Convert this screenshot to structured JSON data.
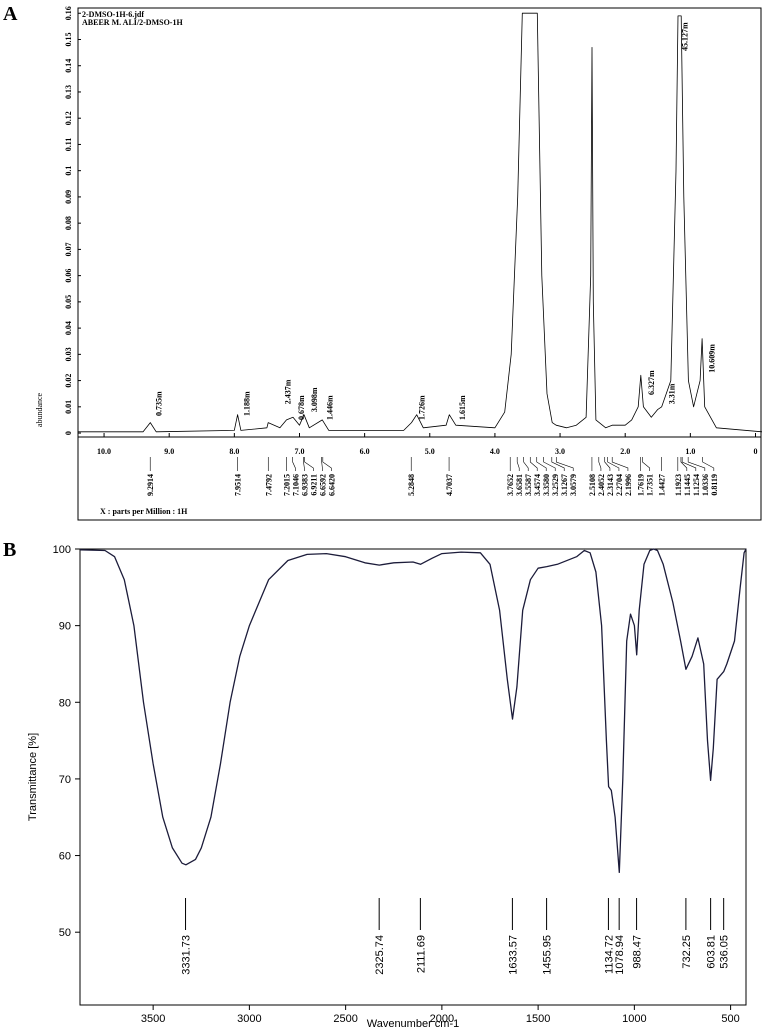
{
  "chart_data": [
    {
      "type": "line",
      "panel_label": "A",
      "title": "2-DMSO-1H-6.jdf",
      "subtitle": "ABEER M. ALI/2-DMSO-1H",
      "y_label": "abundance",
      "x_label": "X : parts per Million : 1H",
      "color": "#000000",
      "xlim": [
        10.4,
        -0.1
      ],
      "ylim": [
        -0.0015,
        0.162
      ],
      "xticks": [
        {
          "value": 10,
          "label": "10.0"
        },
        {
          "value": 9,
          "label": "9.0"
        },
        {
          "value": 8,
          "label": "8.0"
        },
        {
          "value": 7,
          "label": "7.0"
        },
        {
          "value": 6,
          "label": "6.0"
        },
        {
          "value": 5,
          "label": "5.0"
        },
        {
          "value": 4,
          "label": "4.0"
        },
        {
          "value": 3,
          "label": "3.0"
        },
        {
          "value": 2,
          "label": "2.0"
        },
        {
          "value": 1,
          "label": "1.0"
        },
        0
      ],
      "yticks": [
        0,
        0.01,
        0.02,
        0.03,
        0.04,
        0.05,
        0.06,
        0.07,
        0.08,
        0.09,
        0.1,
        0.11,
        0.12,
        0.13,
        0.14,
        0.15,
        0.16
      ],
      "x": [
        10.4,
        9.4,
        9.29,
        9.2,
        8.0,
        7.95,
        7.9,
        7.5,
        7.48,
        7.3,
        7.2,
        7.1,
        7.0,
        6.93,
        6.85,
        6.65,
        6.55,
        5.4,
        5.28,
        5.2,
        5.1,
        4.75,
        4.7,
        4.6,
        4.0,
        3.85,
        3.75,
        3.65,
        3.58,
        3.5,
        3.42,
        3.35,
        3.28,
        3.2,
        3.12,
        3.06,
        2.9,
        2.75,
        2.6,
        2.53,
        2.51,
        2.49,
        2.45,
        2.3,
        2.2,
        2.0,
        1.9,
        1.8,
        1.76,
        1.72,
        1.6,
        1.5,
        1.44,
        1.3,
        1.22,
        1.19,
        1.14,
        1.1,
        1.03,
        0.95,
        0.85,
        0.82,
        0.78,
        0.6,
        -0.1
      ],
      "values": [
        0.0005,
        0.0005,
        0.004,
        0.0005,
        0.001,
        0.007,
        0.001,
        0.002,
        0.004,
        0.002,
        0.005,
        0.006,
        0.003,
        0.007,
        0.002,
        0.005,
        0.001,
        0.001,
        0.004,
        0.007,
        0.002,
        0.003,
        0.007,
        0.003,
        0.002,
        0.008,
        0.03,
        0.09,
        0.16,
        0.16,
        0.16,
        0.16,
        0.06,
        0.015,
        0.004,
        0.003,
        0.002,
        0.003,
        0.006,
        0.06,
        0.147,
        0.05,
        0.005,
        0.002,
        0.003,
        0.003,
        0.005,
        0.01,
        0.022,
        0.01,
        0.006,
        0.009,
        0.01,
        0.02,
        0.1,
        0.159,
        0.159,
        0.09,
        0.02,
        0.01,
        0.02,
        0.036,
        0.01,
        0.002,
        0.0005
      ],
      "annotations": [
        {
          "text": "0.735m",
          "x": 9.12,
          "y": 0.0065
        },
        {
          "text": "1.188m",
          "x": 7.77,
          "y": 0.0065
        },
        {
          "text": "2.437m",
          "x": 7.14,
          "y": 0.011
        },
        {
          "text": "0.678m",
          "x": 6.93,
          "y": 0.005
        },
        {
          "text": "3.098m",
          "x": 6.73,
          "y": 0.008
        },
        {
          "text": "1.446m",
          "x": 6.49,
          "y": 0.005
        },
        {
          "text": "1.726m",
          "x": 5.08,
          "y": 0.005
        },
        {
          "text": "1.615m",
          "x": 4.46,
          "y": 0.005
        },
        {
          "text": "6.327m",
          "x": 1.56,
          "y": 0.0145
        },
        {
          "text": "3.31m",
          "x": 1.24,
          "y": 0.011
        },
        {
          "text": "45.127m",
          "x": 1.04,
          "y": 0.1456
        },
        {
          "text": "10.609m",
          "x": 0.63,
          "y": 0.023
        }
      ],
      "peaks": [
        9.2914,
        7.9514,
        7.4792,
        7.2015,
        7.1046,
        6.9383,
        6.9211,
        6.6592,
        {
          "value": 6.642,
          "label": "6.6420"
        },
        5.2848,
        4.7037,
        3.7652,
        3.6581,
        3.5587,
        3.4574,
        {
          "value": 3.358,
          "label": "3.3580"
        },
        3.2529,
        3.1267,
        3.0579,
        2.5108,
        2.4052,
        2.3143,
        2.2704,
        2.1996,
        1.7619,
        1.7351,
        1.4427,
        1.1923,
        1.1445,
        1.1254,
        1.0336,
        0.8119
      ]
    },
    {
      "type": "line",
      "panel_label": "B",
      "y_label": "Transmittance [%]",
      "x_label": "Wavenumber cm-1",
      "color": "#1c1c3a",
      "xlim": [
        3880,
        420
      ],
      "ylim": [
        40.5,
        100
      ],
      "xticks": [
        3500,
        3000,
        2500,
        2000,
        1500,
        1000,
        500
      ],
      "yticks": [
        50,
        60,
        70,
        80,
        90,
        100
      ],
      "x": [
        3880,
        3750,
        3700,
        3650,
        3600,
        3550,
        3500,
        3450,
        3400,
        3350,
        3330,
        3280,
        3250,
        3200,
        3150,
        3100,
        3050,
        3000,
        2950,
        2900,
        2800,
        2700,
        2600,
        2500,
        2400,
        2325,
        2250,
        2150,
        2111,
        2050,
        2000,
        1900,
        1800,
        1750,
        1700,
        1660,
        1633,
        1610,
        1580,
        1540,
        1500,
        1455,
        1400,
        1300,
        1260,
        1230,
        1200,
        1170,
        1145,
        1134,
        1120,
        1100,
        1078,
        1060,
        1040,
        1020,
        1000,
        988,
        975,
        950,
        920,
        900,
        880,
        850,
        800,
        760,
        732,
        700,
        670,
        640,
        620,
        604,
        590,
        570,
        536,
        520,
        480,
        450,
        430,
        420
      ],
      "values": [
        99.9,
        99.8,
        99,
        96,
        90,
        80,
        72,
        65,
        61,
        59,
        58.8,
        59.5,
        61,
        65,
        72,
        80,
        86,
        90,
        93,
        96,
        98.5,
        99.3,
        99.4,
        99,
        98.2,
        97.9,
        98.2,
        98.3,
        98,
        98.8,
        99.4,
        99.6,
        99.5,
        98,
        92,
        83,
        77.8,
        82,
        92,
        96,
        97.5,
        97.7,
        98,
        99,
        99.8,
        99.5,
        97,
        90,
        75,
        69,
        68.5,
        65,
        57.8,
        70,
        88,
        91.5,
        90,
        86.2,
        92,
        98,
        99.8,
        100,
        99.8,
        98,
        93,
        88,
        84.3,
        86,
        88.4,
        85,
        75,
        69.8,
        74,
        83,
        84,
        85,
        88,
        95,
        99.5,
        100
      ],
      "peaks": [
        3331.73,
        2325.74,
        2111.69,
        1633.57,
        1455.95,
        1134.72,
        1078.94,
        988.47,
        732.25,
        603.81,
        536.05
      ]
    }
  ]
}
